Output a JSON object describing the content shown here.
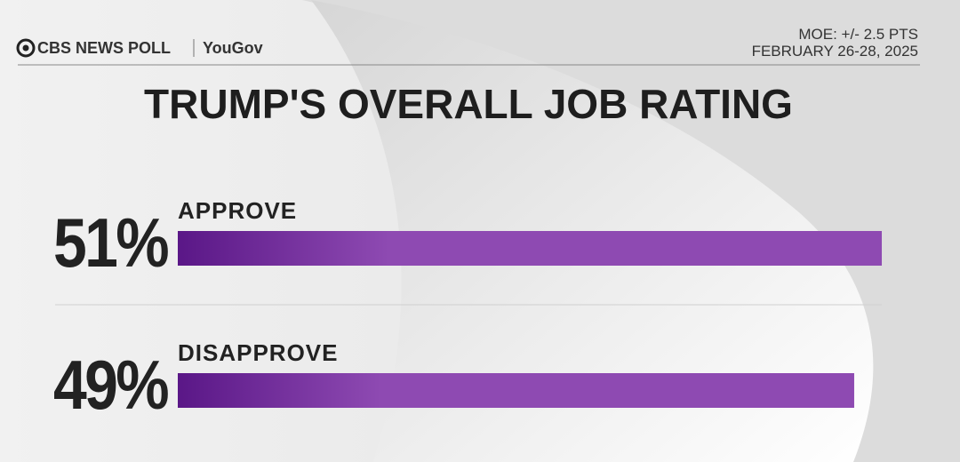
{
  "chart_data": {
    "type": "bar",
    "brand": "CBS NEWS POLL",
    "partner": "YouGov",
    "note": "MOE: +/- 2.5 PTS",
    "date": "FEBRUARY 26-28, 2025",
    "title": "TRUMP'S OVERALL JOB RATING",
    "categories": [
      "APPROVE",
      "DISAPPROVE"
    ],
    "values": [
      51,
      49
    ],
    "value_labels": [
      "51%",
      "49%"
    ],
    "color": "#8e4ab2"
  }
}
